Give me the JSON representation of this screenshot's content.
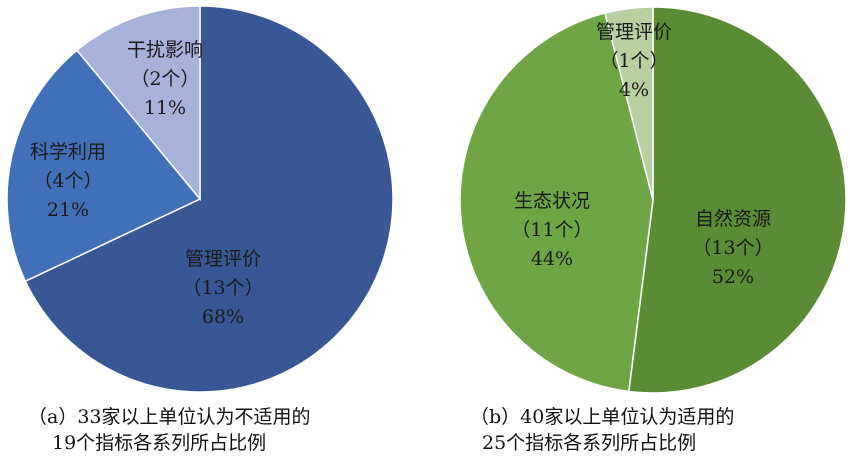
{
  "chart_data": [
    {
      "type": "pie",
      "caption_lines": [
        "（a）33家以上单位认为不适用的",
        "19个指标各系列所占比例"
      ],
      "colors": [
        "#3A5795",
        "#4270B8",
        "#A6B2D9"
      ],
      "slices": [
        {
          "name": "管理评价",
          "count_label": "（13个）",
          "percent_label": "68%",
          "value": 68
        },
        {
          "name": "科学利用",
          "count_label": "（4个）",
          "percent_label": "21%",
          "value": 21
        },
        {
          "name": "干扰影响",
          "count_label": "（2个）",
          "percent_label": "11%",
          "value": 11
        }
      ]
    },
    {
      "type": "pie",
      "caption_lines": [
        "（b）40家以上单位认为适用的",
        "25个指标各系列所占比例"
      ],
      "colors": [
        "#5B8B35",
        "#6FA545",
        "#B7D0A1"
      ],
      "slices": [
        {
          "name": "自然资源",
          "count_label": "（13个）",
          "percent_label": "52%",
          "value": 52
        },
        {
          "name": "生态状况",
          "count_label": "（11个）",
          "percent_label": "44%",
          "value": 44
        },
        {
          "name": "管理评价",
          "count_label": "（1个）",
          "percent_label": "4%",
          "value": 4
        }
      ]
    }
  ]
}
